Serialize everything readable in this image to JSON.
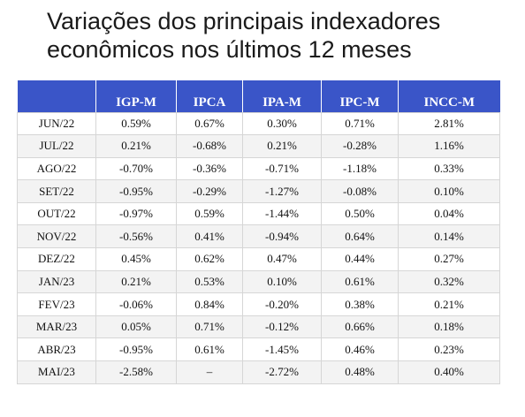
{
  "title": "Variações dos principais indexadores\neconômicos nos últimos 12 meses",
  "chart_data": {
    "type": "table",
    "columns": [
      "",
      "IGP-M",
      "IPCA",
      "IPA-M",
      "IPC-M",
      "INCC-M"
    ],
    "rows": [
      [
        "JUN/22",
        "0.59%",
        "0.67%",
        "0.30%",
        "0.71%",
        "2.81%"
      ],
      [
        "JUL/22",
        "0.21%",
        "-0.68%",
        "0.21%",
        "-0.28%",
        "1.16%"
      ],
      [
        "AGO/22",
        "-0.70%",
        "-0.36%",
        "-0.71%",
        "-1.18%",
        "0.33%"
      ],
      [
        "SET/22",
        "-0.95%",
        "-0.29%",
        "-1.27%",
        "-0.08%",
        "0.10%"
      ],
      [
        "OUT/22",
        "-0.97%",
        "0.59%",
        "-1.44%",
        "0.50%",
        "0.04%"
      ],
      [
        "NOV/22",
        "-0.56%",
        "0.41%",
        "-0.94%",
        "0.64%",
        "0.14%"
      ],
      [
        "DEZ/22",
        "0.45%",
        "0.62%",
        "0.47%",
        "0.44%",
        "0.27%"
      ],
      [
        "JAN/23",
        "0.21%",
        "0.53%",
        "0.10%",
        "0.61%",
        "0.32%"
      ],
      [
        "FEV/23",
        "-0.06%",
        "0.84%",
        "-0.20%",
        "0.38%",
        "0.21%"
      ],
      [
        "MAR/23",
        "0.05%",
        "0.71%",
        "-0.12%",
        "0.66%",
        "0.18%"
      ],
      [
        "ABR/23",
        "-0.95%",
        "0.61%",
        "-1.45%",
        "0.46%",
        "0.23%"
      ],
      [
        "MAI/23",
        "-2.58%",
        "–",
        "-2.72%",
        "0.48%",
        "0.40%"
      ]
    ]
  },
  "colors": {
    "header_bg": "#3a55c8",
    "header_text": "#ffffff",
    "stripe": "#f3f3f3",
    "border": "#d6d6d6"
  }
}
